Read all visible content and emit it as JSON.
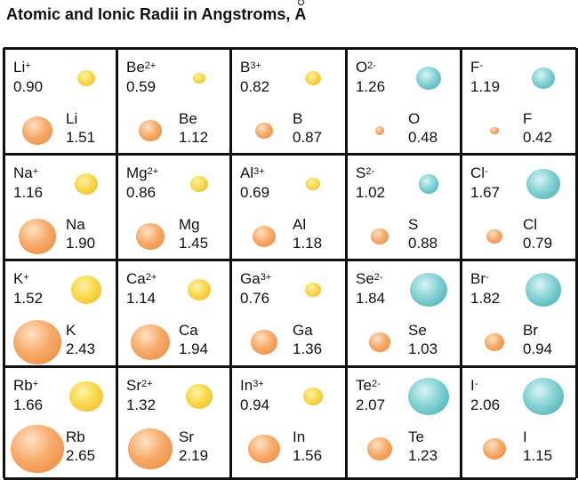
{
  "title": {
    "text": "Atomic and Ionic Radii in Angstroms, ",
    "unit": "A"
  },
  "colors": {
    "cation": "#f5c93c",
    "anion": "#5fbfc3",
    "atom": "#f39a52"
  },
  "rows": [
    [
      {
        "ion": "Li",
        "charge": "+",
        "ion_r": 0.9,
        "ion_type": "cation",
        "atom": "Li",
        "atom_r": 1.51
      },
      {
        "ion": "Be",
        "charge": "2+",
        "ion_r": 0.59,
        "ion_type": "cation",
        "atom": "Be",
        "atom_r": 1.12
      },
      {
        "ion": "B",
        "charge": "3+",
        "ion_r": 0.82,
        "ion_type": "cation",
        "atom": "B",
        "atom_r": 0.87
      },
      {
        "ion": "O",
        "charge": "2-",
        "ion_r": 1.26,
        "ion_type": "anion",
        "atom": "O",
        "atom_r": 0.48
      },
      {
        "ion": "F",
        "charge": "-",
        "ion_r": 1.19,
        "ion_type": "anion",
        "atom": "F",
        "atom_r": 0.42
      }
    ],
    [
      {
        "ion": "Na",
        "charge": "+",
        "ion_r": 1.16,
        "ion_type": "cation",
        "atom": "Na",
        "atom_r": 1.9
      },
      {
        "ion": "Mg",
        "charge": "2+",
        "ion_r": 0.86,
        "ion_type": "cation",
        "atom": "Mg",
        "atom_r": 1.45
      },
      {
        "ion": "Al",
        "charge": "3+",
        "ion_r": 0.69,
        "ion_type": "cation",
        "atom": "Al",
        "atom_r": 1.18
      },
      {
        "ion": "S",
        "charge": "2-",
        "ion_r": 1.02,
        "ion_type": "anion",
        "atom": "S",
        "atom_r": 0.88
      },
      {
        "ion": "Cl",
        "charge": "-",
        "ion_r": 1.67,
        "ion_type": "anion",
        "atom": "Cl",
        "atom_r": 0.79
      }
    ],
    [
      {
        "ion": "K",
        "charge": "+",
        "ion_r": 1.52,
        "ion_type": "cation",
        "atom": "K",
        "atom_r": 2.43
      },
      {
        "ion": "Ca",
        "charge": "2+",
        "ion_r": 1.14,
        "ion_type": "cation",
        "atom": "Ca",
        "atom_r": 1.94
      },
      {
        "ion": "Ga",
        "charge": "3+",
        "ion_r": 0.76,
        "ion_type": "cation",
        "atom": "Ga",
        "atom_r": 1.36
      },
      {
        "ion": "Se",
        "charge": "2-",
        "ion_r": 1.84,
        "ion_type": "anion",
        "atom": "Se",
        "atom_r": 1.03
      },
      {
        "ion": "Br",
        "charge": "-",
        "ion_r": 1.82,
        "ion_type": "anion",
        "atom": "Br",
        "atom_r": 0.94
      }
    ],
    [
      {
        "ion": "Rb",
        "charge": "+",
        "ion_r": 1.66,
        "ion_type": "cation",
        "atom": "Rb",
        "atom_r": 2.65
      },
      {
        "ion": "Sr",
        "charge": "2+",
        "ion_r": 1.32,
        "ion_type": "cation",
        "atom": "Sr",
        "atom_r": 2.19
      },
      {
        "ion": "In",
        "charge": "3+",
        "ion_r": 0.94,
        "ion_type": "cation",
        "atom": "In",
        "atom_r": 1.56
      },
      {
        "ion": "Te",
        "charge": "2-",
        "ion_r": 2.07,
        "ion_type": "anion",
        "atom": "Te",
        "atom_r": 1.23
      },
      {
        "ion": "I",
        "charge": "-",
        "ion_r": 2.06,
        "ion_type": "anion",
        "atom": "I",
        "atom_r": 1.15
      }
    ]
  ]
}
